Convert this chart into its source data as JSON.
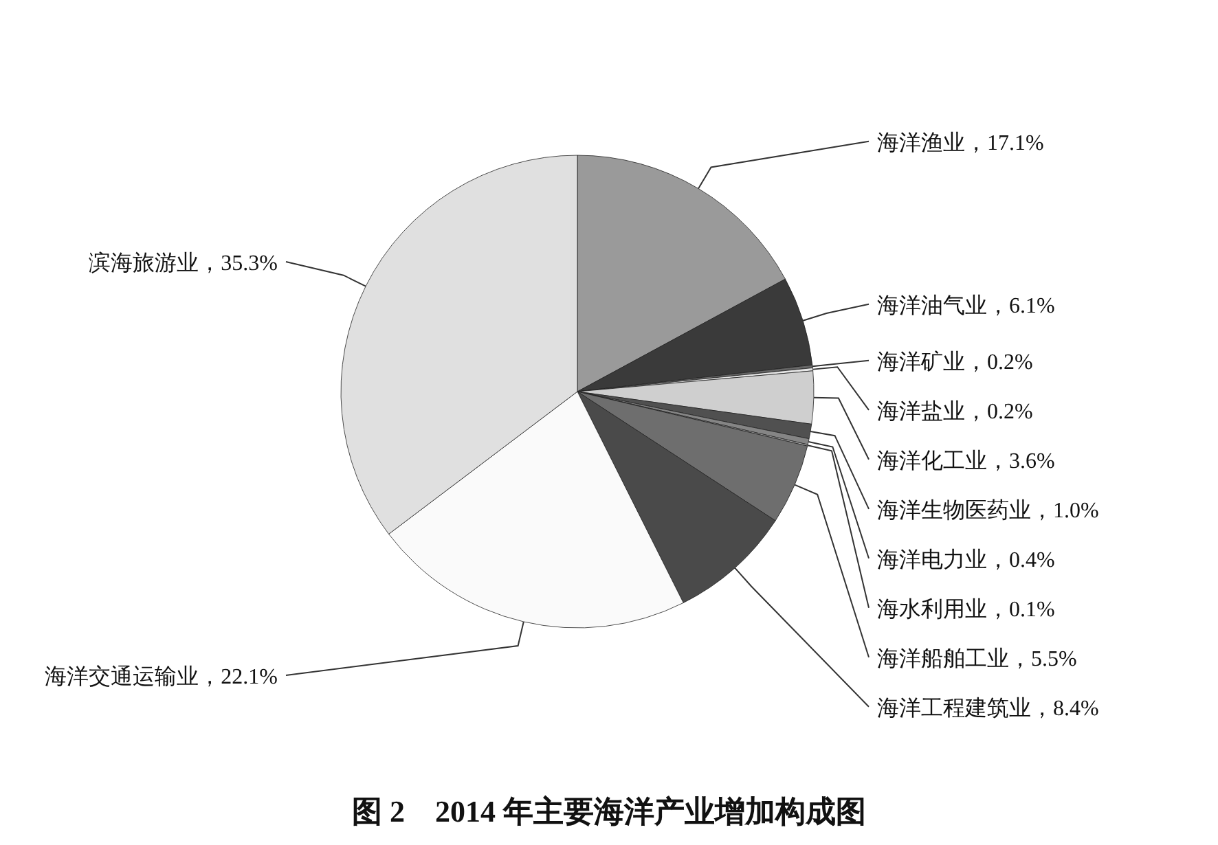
{
  "chart_data": {
    "type": "pie",
    "title": "图 2　2014 年主要海洋产业增加构成图",
    "categories": [
      "海洋渔业",
      "海洋油气业",
      "海洋矿业",
      "海洋盐业",
      "海洋化工业",
      "海洋生物医药业",
      "海洋电力业",
      "海水利用业",
      "海洋船舶工业",
      "海洋工程建筑业",
      "海洋交通运输业",
      "滨海旅游业"
    ],
    "values": [
      17.1,
      6.1,
      0.2,
      0.2,
      3.6,
      1.0,
      0.4,
      0.1,
      5.5,
      8.4,
      22.1,
      35.3
    ],
    "value_labels": [
      "17.1%",
      "6.1%",
      "0.2%",
      "0.2%",
      "3.6%",
      "1.0%",
      "0.4%",
      "0.1%",
      "5.5%",
      "8.4%",
      "22.1%",
      "35.3%"
    ],
    "colors": [
      "#9a9a9a",
      "#3a3a3a",
      "#666666",
      "#e6e6e6",
      "#cfcfcf",
      "#505050",
      "#858585",
      "#b0b0b0",
      "#6e6e6e",
      "#4a4a4a",
      "#fafafa",
      "#e0e0e0"
    ]
  }
}
